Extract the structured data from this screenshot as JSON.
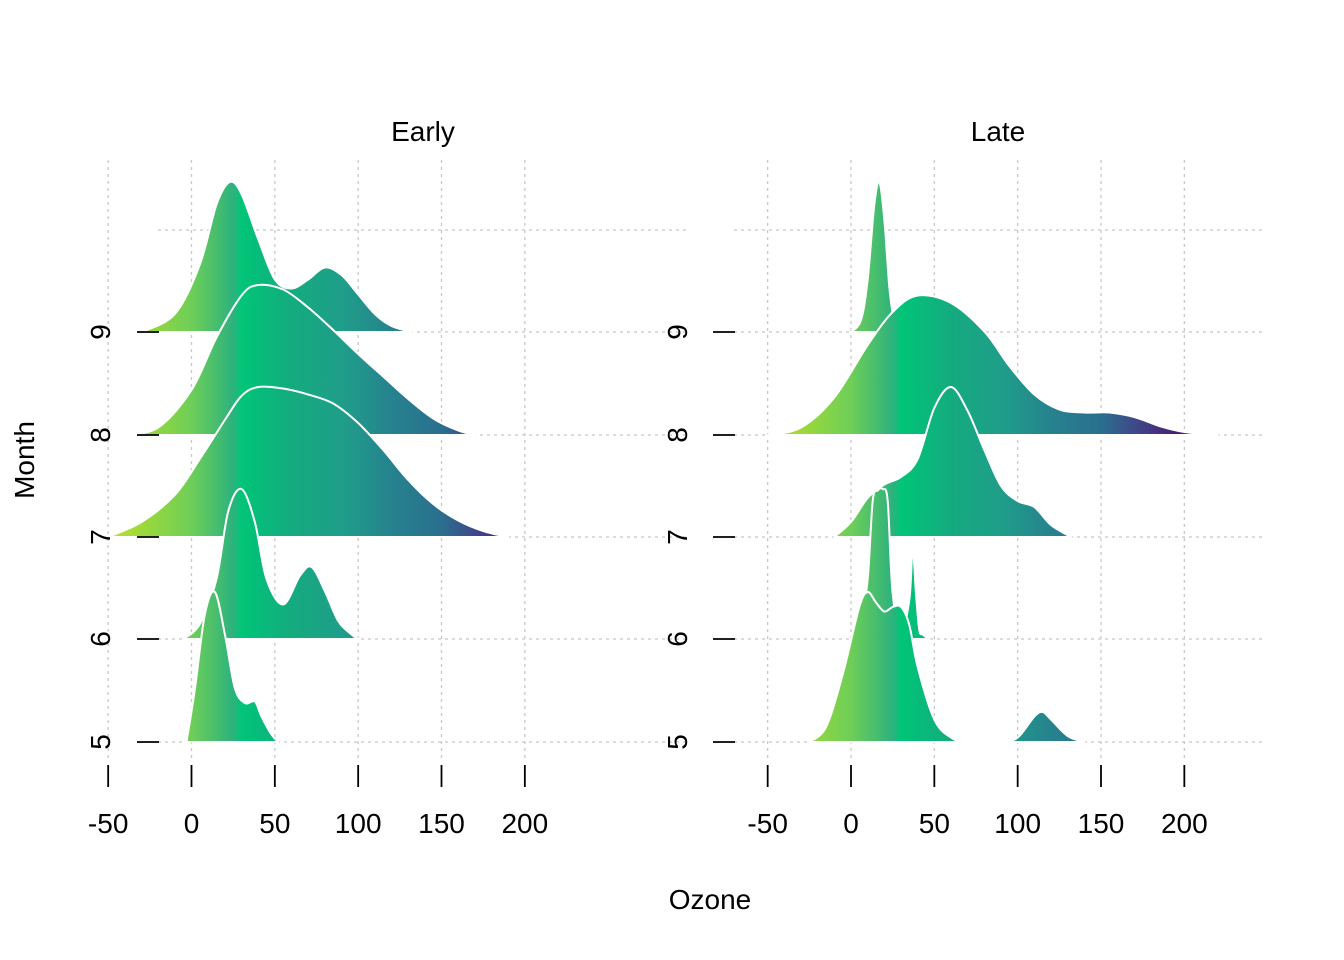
{
  "chart_data": {
    "type": "ridgeline",
    "xlabel": "Ozone",
    "ylabel": "Month",
    "x_ticks": [
      -50,
      0,
      50,
      100,
      150,
      200
    ],
    "y_categories": [
      "5",
      "6",
      "7",
      "8",
      "9"
    ],
    "fill": "viridis gradient mapped to Ozone (low = yellow-green, high = dark blue/purple)",
    "grid": true,
    "panels": [
      {
        "title": "Early",
        "ridges": [
          {
            "month": "9",
            "x": [
              -30,
              -10,
              5,
              15,
              23,
              30,
              40,
              50,
              60,
              70,
              80,
              90,
              100,
              110,
              120,
              132
            ],
            "density": [
              0,
              0.12,
              0.45,
              0.85,
              1.0,
              0.92,
              0.62,
              0.35,
              0.29,
              0.35,
              0.43,
              0.38,
              0.25,
              0.12,
              0.04,
              0
            ]
          },
          {
            "month": "8",
            "x": [
              -40,
              -20,
              0,
              15,
              30,
              40,
              55,
              70,
              85,
              100,
              115,
              130,
              145,
              160,
              170
            ],
            "density": [
              0,
              0.05,
              0.3,
              0.65,
              0.93,
              1.0,
              0.97,
              0.85,
              0.7,
              0.54,
              0.39,
              0.24,
              0.11,
              0.03,
              0
            ]
          },
          {
            "month": "7",
            "x": [
              -50,
              -30,
              -10,
              5,
              20,
              30,
              40,
              55,
              70,
              85,
              100,
              115,
              130,
              145,
              160,
              175,
              190
            ],
            "density": [
              0,
              0.1,
              0.28,
              0.52,
              0.78,
              0.94,
              1.0,
              0.99,
              0.95,
              0.89,
              0.76,
              0.58,
              0.38,
              0.22,
              0.11,
              0.04,
              0
            ]
          },
          {
            "month": "6",
            "x": [
              -5,
              5,
              15,
              22,
              30,
              38,
              45,
              55,
              65,
              72,
              80,
              88,
              96,
              100
            ],
            "density": [
              0,
              0.1,
              0.4,
              0.85,
              1.0,
              0.78,
              0.4,
              0.23,
              0.42,
              0.48,
              0.32,
              0.12,
              0.03,
              0
            ]
          },
          {
            "month": "5",
            "x": [
              -3,
              2,
              8,
              14,
              20,
              26,
              32,
              38,
              42,
              48,
              52
            ],
            "density": [
              0,
              0.35,
              0.85,
              1.0,
              0.72,
              0.36,
              0.26,
              0.27,
              0.17,
              0.05,
              0
            ]
          }
        ]
      },
      {
        "title": "Late",
        "ridges": [
          {
            "month": "9",
            "x": [
              0,
              6,
              10,
              14,
              17,
              20,
              23,
              26,
              28
            ],
            "density": [
              0,
              0.08,
              0.35,
              0.85,
              1.0,
              0.75,
              0.3,
              0.06,
              0
            ]
          },
          {
            "month": "8",
            "x": [
              -50,
              -30,
              -10,
              10,
              25,
              40,
              60,
              80,
              95,
              110,
              125,
              140,
              155,
              170,
              185,
              200,
              220
            ],
            "density": [
              0,
              0.05,
              0.25,
              0.6,
              0.82,
              0.93,
              0.88,
              0.69,
              0.46,
              0.27,
              0.17,
              0.15,
              0.15,
              0.12,
              0.06,
              0.02,
              0
            ]
          },
          {
            "month": "7",
            "x": [
              -10,
              0,
              10,
              20,
              30,
              40,
              50,
              60,
              70,
              80,
              90,
              100,
              110,
              120,
              132
            ],
            "density": [
              0,
              0.1,
              0.26,
              0.35,
              0.4,
              0.52,
              0.86,
              1.0,
              0.84,
              0.58,
              0.34,
              0.24,
              0.2,
              0.08,
              0
            ]
          },
          {
            "month": "6",
            "x": [
              5,
              10,
              13,
              16,
              19,
              22,
              25,
              30,
              35,
              37,
              39,
              41,
              43,
              47
            ],
            "density": [
              0,
              0.4,
              0.92,
              0.99,
              1.0,
              0.92,
              0.3,
              0.05,
              0.26,
              0.6,
              0.3,
              0.06,
              0.03,
              0
            ]
          },
          {
            "month": "5",
            "x": [
              -25,
              -15,
              -5,
              5,
              10,
              15,
              20,
              25,
              30,
              35,
              40,
              50,
              60,
              70,
              90,
              100,
              110,
              115,
              120,
              130,
              140
            ],
            "density": [
              0,
              0.1,
              0.45,
              0.9,
              1.0,
              0.93,
              0.87,
              0.9,
              0.9,
              0.78,
              0.5,
              0.15,
              0.03,
              0,
              0,
              0.03,
              0.17,
              0.2,
              0.15,
              0.04,
              0
            ]
          }
        ]
      }
    ]
  }
}
